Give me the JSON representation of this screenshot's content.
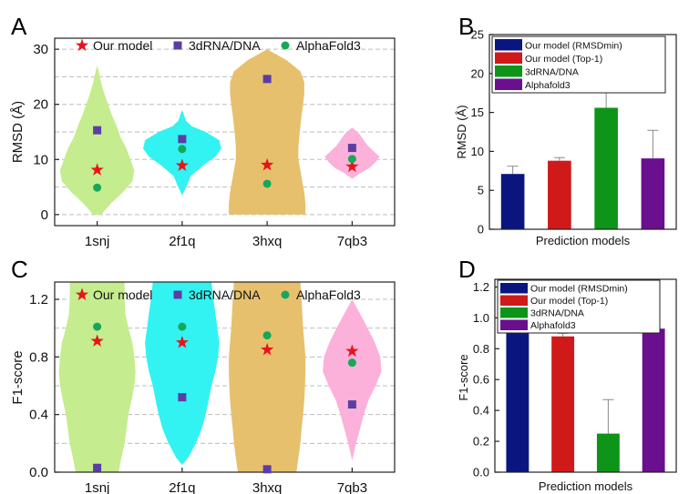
{
  "chart_data": [
    {
      "panel": "A",
      "type": "scatter",
      "subtype": "violin",
      "categories": [
        "1snj",
        "2f1q",
        "3hxq",
        "7qb3"
      ],
      "ylabel": "RMSD (Å)",
      "ylim": [
        -2,
        32
      ],
      "yticks": [
        0,
        10,
        20,
        30
      ],
      "grid": true,
      "violin_colors": [
        "#c5ec8e",
        "#33f2f2",
        "#e7c06e",
        "#fbb1d9"
      ],
      "violins": [
        {
          "min": 0,
          "max": 27,
          "profile": [
            [
              0,
              0.1
            ],
            [
              2,
              0.35
            ],
            [
              4,
              0.65
            ],
            [
              6,
              0.9
            ],
            [
              8,
              0.95
            ],
            [
              10,
              0.85
            ],
            [
              12,
              0.75
            ],
            [
              14,
              0.6
            ],
            [
              16,
              0.5
            ],
            [
              18,
              0.38
            ],
            [
              20,
              0.28
            ],
            [
              22,
              0.18
            ],
            [
              24,
              0.1
            ],
            [
              26,
              0.04
            ],
            [
              27,
              0
            ]
          ]
        },
        {
          "min": 3.5,
          "max": 19,
          "profile": [
            [
              3.5,
              0
            ],
            [
              5,
              0.1
            ],
            [
              7,
              0.22
            ],
            [
              9,
              0.55
            ],
            [
              10.5,
              0.85
            ],
            [
              12,
              1
            ],
            [
              13.5,
              0.95
            ],
            [
              15,
              0.6
            ],
            [
              16,
              0.25
            ],
            [
              17,
              0.1
            ],
            [
              18,
              0.05
            ],
            [
              19,
              0
            ]
          ]
        },
        {
          "min": 0,
          "max": 30,
          "profile": [
            [
              0,
              0.98
            ],
            [
              2,
              0.98
            ],
            [
              4,
              0.95
            ],
            [
              6,
              0.9
            ],
            [
              8,
              0.85
            ],
            [
              10,
              0.8
            ],
            [
              12,
              0.8
            ],
            [
              14,
              0.82
            ],
            [
              16,
              0.85
            ],
            [
              18,
              0.88
            ],
            [
              20,
              0.92
            ],
            [
              22,
              0.95
            ],
            [
              24,
              0.95
            ],
            [
              26,
              0.85
            ],
            [
              28,
              0.5
            ],
            [
              30,
              0
            ]
          ]
        },
        {
          "min": 6.5,
          "max": 15.8,
          "profile": [
            [
              6.5,
              0
            ],
            [
              7.5,
              0.2
            ],
            [
              8.5,
              0.45
            ],
            [
              9.5,
              0.6
            ],
            [
              10.5,
              0.7
            ],
            [
              11.5,
              0.55
            ],
            [
              12.5,
              0.4
            ],
            [
              13.5,
              0.3
            ],
            [
              14.5,
              0.2
            ],
            [
              15.2,
              0.1
            ],
            [
              15.8,
              0
            ]
          ]
        }
      ],
      "series": [
        {
          "name": "Our model",
          "marker": "star",
          "color": "#e8141c",
          "values": [
            8.1,
            8.9,
            9.0,
            8.7
          ]
        },
        {
          "name": "3dRNA/DNA",
          "marker": "square",
          "color": "#5b3ea5",
          "values": [
            15.3,
            13.7,
            24.6,
            12.1
          ]
        },
        {
          "name": "AlphaFold3",
          "marker": "circle",
          "color": "#16a85a",
          "values": [
            4.9,
            11.9,
            5.6,
            10.1
          ]
        }
      ]
    },
    {
      "panel": "B",
      "type": "bar",
      "categories": [
        "Our model (RMSDmin)",
        "Our model (Top-1)",
        "3dRNA/DNA",
        "Alphafold3"
      ],
      "values": [
        7.1,
        8.8,
        15.6,
        9.1
      ],
      "errors": [
        1.0,
        0.4,
        5.2,
        3.6
      ],
      "colors": [
        "#0a1580",
        "#d01919",
        "#0e9418",
        "#6a0f8e"
      ],
      "xlabel": "Prediction models",
      "ylabel": "RMSD (Å)",
      "ylim": [
        0,
        25
      ],
      "yticks": [
        0,
        5,
        10,
        15,
        20,
        25
      ],
      "legend": "top-left"
    },
    {
      "panel": "C",
      "type": "scatter",
      "subtype": "violin",
      "categories": [
        "1snj",
        "2f1q",
        "3hxq",
        "7qb3"
      ],
      "ylabel": "F1-score",
      "ylim": [
        0,
        1.32
      ],
      "yticks": [
        0.0,
        0.4,
        0.8,
        1.2
      ],
      "ytick_labels": [
        "0.0",
        "0.4",
        "0.8",
        "1.2"
      ],
      "grid": true,
      "violin_colors": [
        "#c5ec8e",
        "#33f2f2",
        "#e7c06e",
        "#fbb1d9"
      ],
      "violins": [
        {
          "min": 0,
          "max": 1.32,
          "profile": [
            [
              0,
              0.55
            ],
            [
              0.1,
              0.62
            ],
            [
              0.2,
              0.7
            ],
            [
              0.3,
              0.75
            ],
            [
              0.4,
              0.8
            ],
            [
              0.5,
              0.88
            ],
            [
              0.6,
              0.95
            ],
            [
              0.7,
              0.98
            ],
            [
              0.8,
              0.95
            ],
            [
              0.9,
              0.9
            ],
            [
              1.0,
              0.8
            ],
            [
              1.1,
              0.72
            ],
            [
              1.2,
              0.7
            ],
            [
              1.32,
              0.7
            ]
          ]
        },
        {
          "min": 0.05,
          "max": 1.32,
          "profile": [
            [
              0.05,
              0
            ],
            [
              0.1,
              0.15
            ],
            [
              0.2,
              0.35
            ],
            [
              0.3,
              0.5
            ],
            [
              0.4,
              0.6
            ],
            [
              0.5,
              0.68
            ],
            [
              0.6,
              0.75
            ],
            [
              0.7,
              0.85
            ],
            [
              0.8,
              0.92
            ],
            [
              0.9,
              0.95
            ],
            [
              1.0,
              0.9
            ],
            [
              1.1,
              0.85
            ],
            [
              1.2,
              0.8
            ],
            [
              1.32,
              0.75
            ]
          ]
        },
        {
          "min": 0,
          "max": 1.32,
          "profile": [
            [
              0,
              0.75
            ],
            [
              0.1,
              0.8
            ],
            [
              0.2,
              0.85
            ],
            [
              0.3,
              0.88
            ],
            [
              0.4,
              0.92
            ],
            [
              0.5,
              0.95
            ],
            [
              0.6,
              0.97
            ],
            [
              0.7,
              0.98
            ],
            [
              0.8,
              0.98
            ],
            [
              0.9,
              0.95
            ],
            [
              1.0,
              0.92
            ],
            [
              1.1,
              0.9
            ],
            [
              1.2,
              0.88
            ],
            [
              1.32,
              0.85
            ]
          ]
        },
        {
          "min": 0.08,
          "max": 1.2,
          "profile": [
            [
              0.08,
              0
            ],
            [
              0.2,
              0.1
            ],
            [
              0.3,
              0.2
            ],
            [
              0.4,
              0.3
            ],
            [
              0.5,
              0.42
            ],
            [
              0.6,
              0.6
            ],
            [
              0.7,
              0.75
            ],
            [
              0.8,
              0.72
            ],
            [
              0.9,
              0.58
            ],
            [
              1.0,
              0.4
            ],
            [
              1.1,
              0.2
            ],
            [
              1.2,
              0
            ]
          ]
        }
      ],
      "series": [
        {
          "name": "Our model",
          "marker": "star",
          "color": "#e8141c",
          "values": [
            0.91,
            0.9,
            0.85,
            0.84
          ]
        },
        {
          "name": "3dRNA/DNA",
          "marker": "square",
          "color": "#5b3ea5",
          "values": [
            0.03,
            0.52,
            0.02,
            0.47
          ]
        },
        {
          "name": "AlphaFold3",
          "marker": "circle",
          "color": "#16a85a",
          "values": [
            1.01,
            1.01,
            0.95,
            0.76
          ]
        }
      ]
    },
    {
      "panel": "D",
      "type": "bar",
      "categories": [
        "Our model (RMSDmin)",
        "Our model (Top-1)",
        "3dRNA/DNA",
        "Alphafold3"
      ],
      "values": [
        0.93,
        0.88,
        0.25,
        0.93
      ],
      "errors": [
        0.0,
        0.02,
        0.22,
        0.09
      ],
      "colors": [
        "#0a1580",
        "#d01919",
        "#0e9418",
        "#6a0f8e"
      ],
      "xlabel": "Prediction models",
      "ylabel": "F1-score",
      "ylim": [
        0,
        1.25
      ],
      "yticks": [
        0.0,
        0.2,
        0.4,
        0.6,
        0.8,
        1.0,
        1.2
      ],
      "ytick_labels": [
        "0.0",
        "0.2",
        "0.4",
        "0.6",
        "0.8",
        "1.0",
        "1.2"
      ],
      "legend": "top-left"
    }
  ],
  "panels": {
    "A": "A",
    "B": "B",
    "C": "C",
    "D": "D"
  }
}
